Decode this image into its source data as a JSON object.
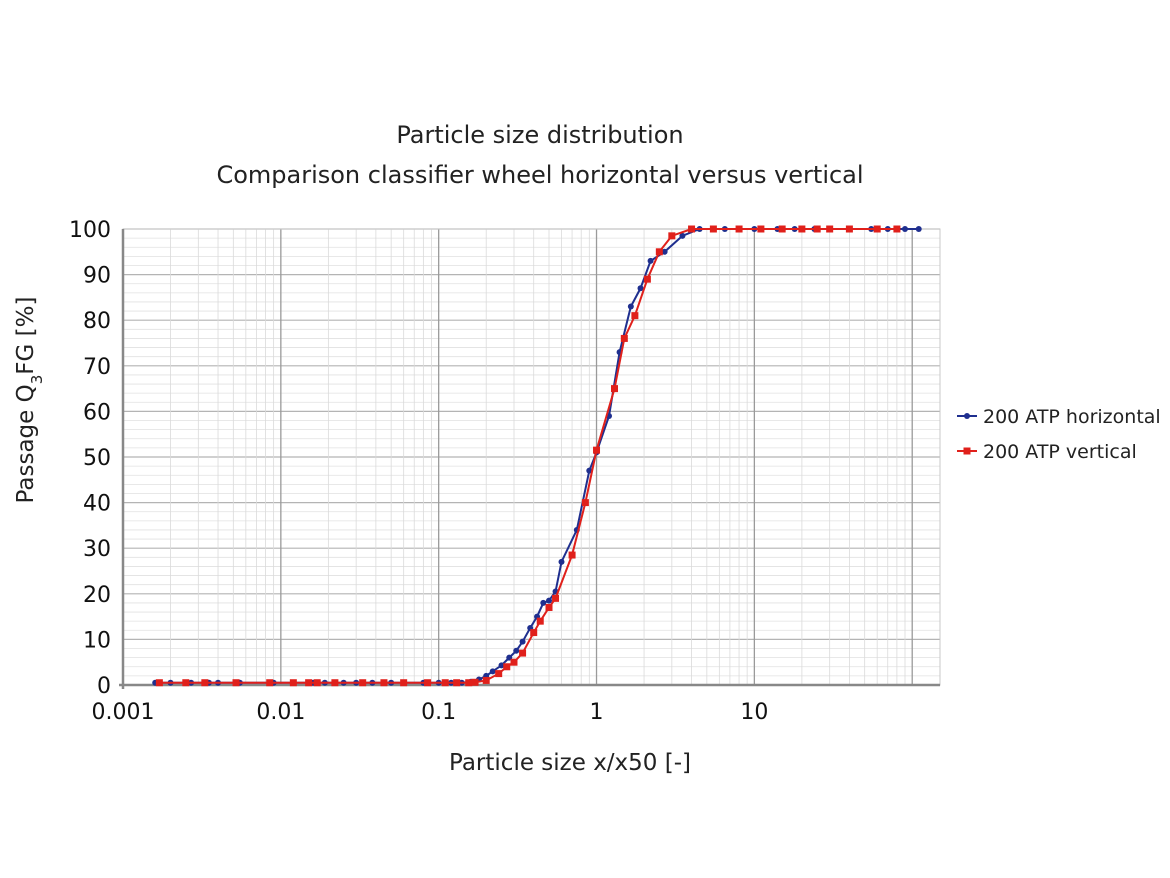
{
  "chart_data": {
    "type": "line",
    "title": "Particle size distribution",
    "subtitle": "Comparison classifier wheel horizontal versus vertical",
    "xlabel": "Particle size x/x50 [-]",
    "ylabel": {
      "main": "Passage Q",
      "sub": "3",
      "rest": "FG [%]"
    },
    "x_scale": "log",
    "xlim": [
      0.001,
      150
    ],
    "ylim": [
      0,
      100
    ],
    "x_ticks": [
      {
        "value": 0.001,
        "label": "0.001"
      },
      {
        "value": 0.01,
        "label": "0.01"
      },
      {
        "value": 0.1,
        "label": "0.1"
      },
      {
        "value": 1,
        "label": "1"
      },
      {
        "value": 10,
        "label": "10"
      }
    ],
    "y_ticks": [
      {
        "value": 0,
        "label": "0"
      },
      {
        "value": 10,
        "label": "10"
      },
      {
        "value": 20,
        "label": "20"
      },
      {
        "value": 30,
        "label": "30"
      },
      {
        "value": 40,
        "label": "40"
      },
      {
        "value": 50,
        "label": "50"
      },
      {
        "value": 60,
        "label": "60"
      },
      {
        "value": 70,
        "label": "70"
      },
      {
        "value": 80,
        "label": "80"
      },
      {
        "value": 90,
        "label": "90"
      },
      {
        "value": 100,
        "label": "100"
      }
    ],
    "grid": true,
    "legend_position": "right",
    "series": [
      {
        "name": "200 ATP horizontal",
        "color": "#1f2f8f",
        "marker": "circle",
        "x": [
          0.0016,
          0.002,
          0.0027,
          0.0035,
          0.004,
          0.0055,
          0.009,
          0.012,
          0.016,
          0.019,
          0.025,
          0.03,
          0.038,
          0.05,
          0.06,
          0.08,
          0.1,
          0.12,
          0.14,
          0.16,
          0.18,
          0.2,
          0.22,
          0.25,
          0.28,
          0.31,
          0.34,
          0.38,
          0.42,
          0.46,
          0.5,
          0.55,
          0.6,
          0.75,
          0.9,
          1.0,
          1.2,
          1.4,
          1.65,
          1.9,
          2.2,
          2.7,
          3.5,
          4.5,
          5.5,
          6.5,
          8,
          10,
          14,
          18,
          24,
          30,
          40,
          55,
          70,
          90,
          110
        ],
        "y": [
          0.5,
          0.5,
          0.5,
          0.5,
          0.5,
          0.5,
          0.5,
          0.5,
          0.5,
          0.5,
          0.5,
          0.5,
          0.5,
          0.5,
          0.5,
          0.5,
          0.5,
          0.5,
          0.5,
          0.7,
          1.2,
          2.0,
          3.0,
          4.3,
          6.0,
          7.5,
          9.5,
          12.5,
          15.0,
          18.0,
          18.5,
          20.5,
          27.0,
          34.0,
          47.0,
          51.0,
          59.0,
          73.0,
          83.0,
          87.0,
          93.0,
          95.0,
          98.5,
          100,
          100,
          100,
          100,
          100,
          100,
          100,
          100,
          100,
          100,
          100,
          100,
          100,
          100
        ]
      },
      {
        "name": "200 ATP vertical",
        "color": "#e0201b",
        "marker": "square",
        "x": [
          0.0017,
          0.0025,
          0.0033,
          0.0052,
          0.0085,
          0.012,
          0.015,
          0.017,
          0.022,
          0.033,
          0.045,
          0.06,
          0.085,
          0.11,
          0.13,
          0.155,
          0.17,
          0.2,
          0.24,
          0.27,
          0.3,
          0.34,
          0.4,
          0.44,
          0.5,
          0.55,
          0.7,
          0.85,
          1.0,
          1.3,
          1.5,
          1.75,
          2.1,
          2.5,
          3.0,
          4.0,
          5.5,
          8.0,
          11.0,
          15.0,
          20.0,
          25.0,
          30.0,
          40.0,
          60.0,
          80.0
        ],
        "y": [
          0.5,
          0.5,
          0.5,
          0.5,
          0.5,
          0.5,
          0.5,
          0.5,
          0.5,
          0.5,
          0.5,
          0.5,
          0.5,
          0.5,
          0.5,
          0.5,
          0.6,
          1.0,
          2.5,
          4.0,
          5.0,
          7.0,
          11.5,
          14.0,
          17.0,
          19.0,
          28.5,
          40.0,
          51.5,
          65.0,
          76.0,
          81.0,
          89.0,
          95.0,
          98.5,
          100,
          100,
          100,
          100,
          100,
          100,
          100,
          100,
          100,
          100,
          100
        ]
      }
    ]
  }
}
